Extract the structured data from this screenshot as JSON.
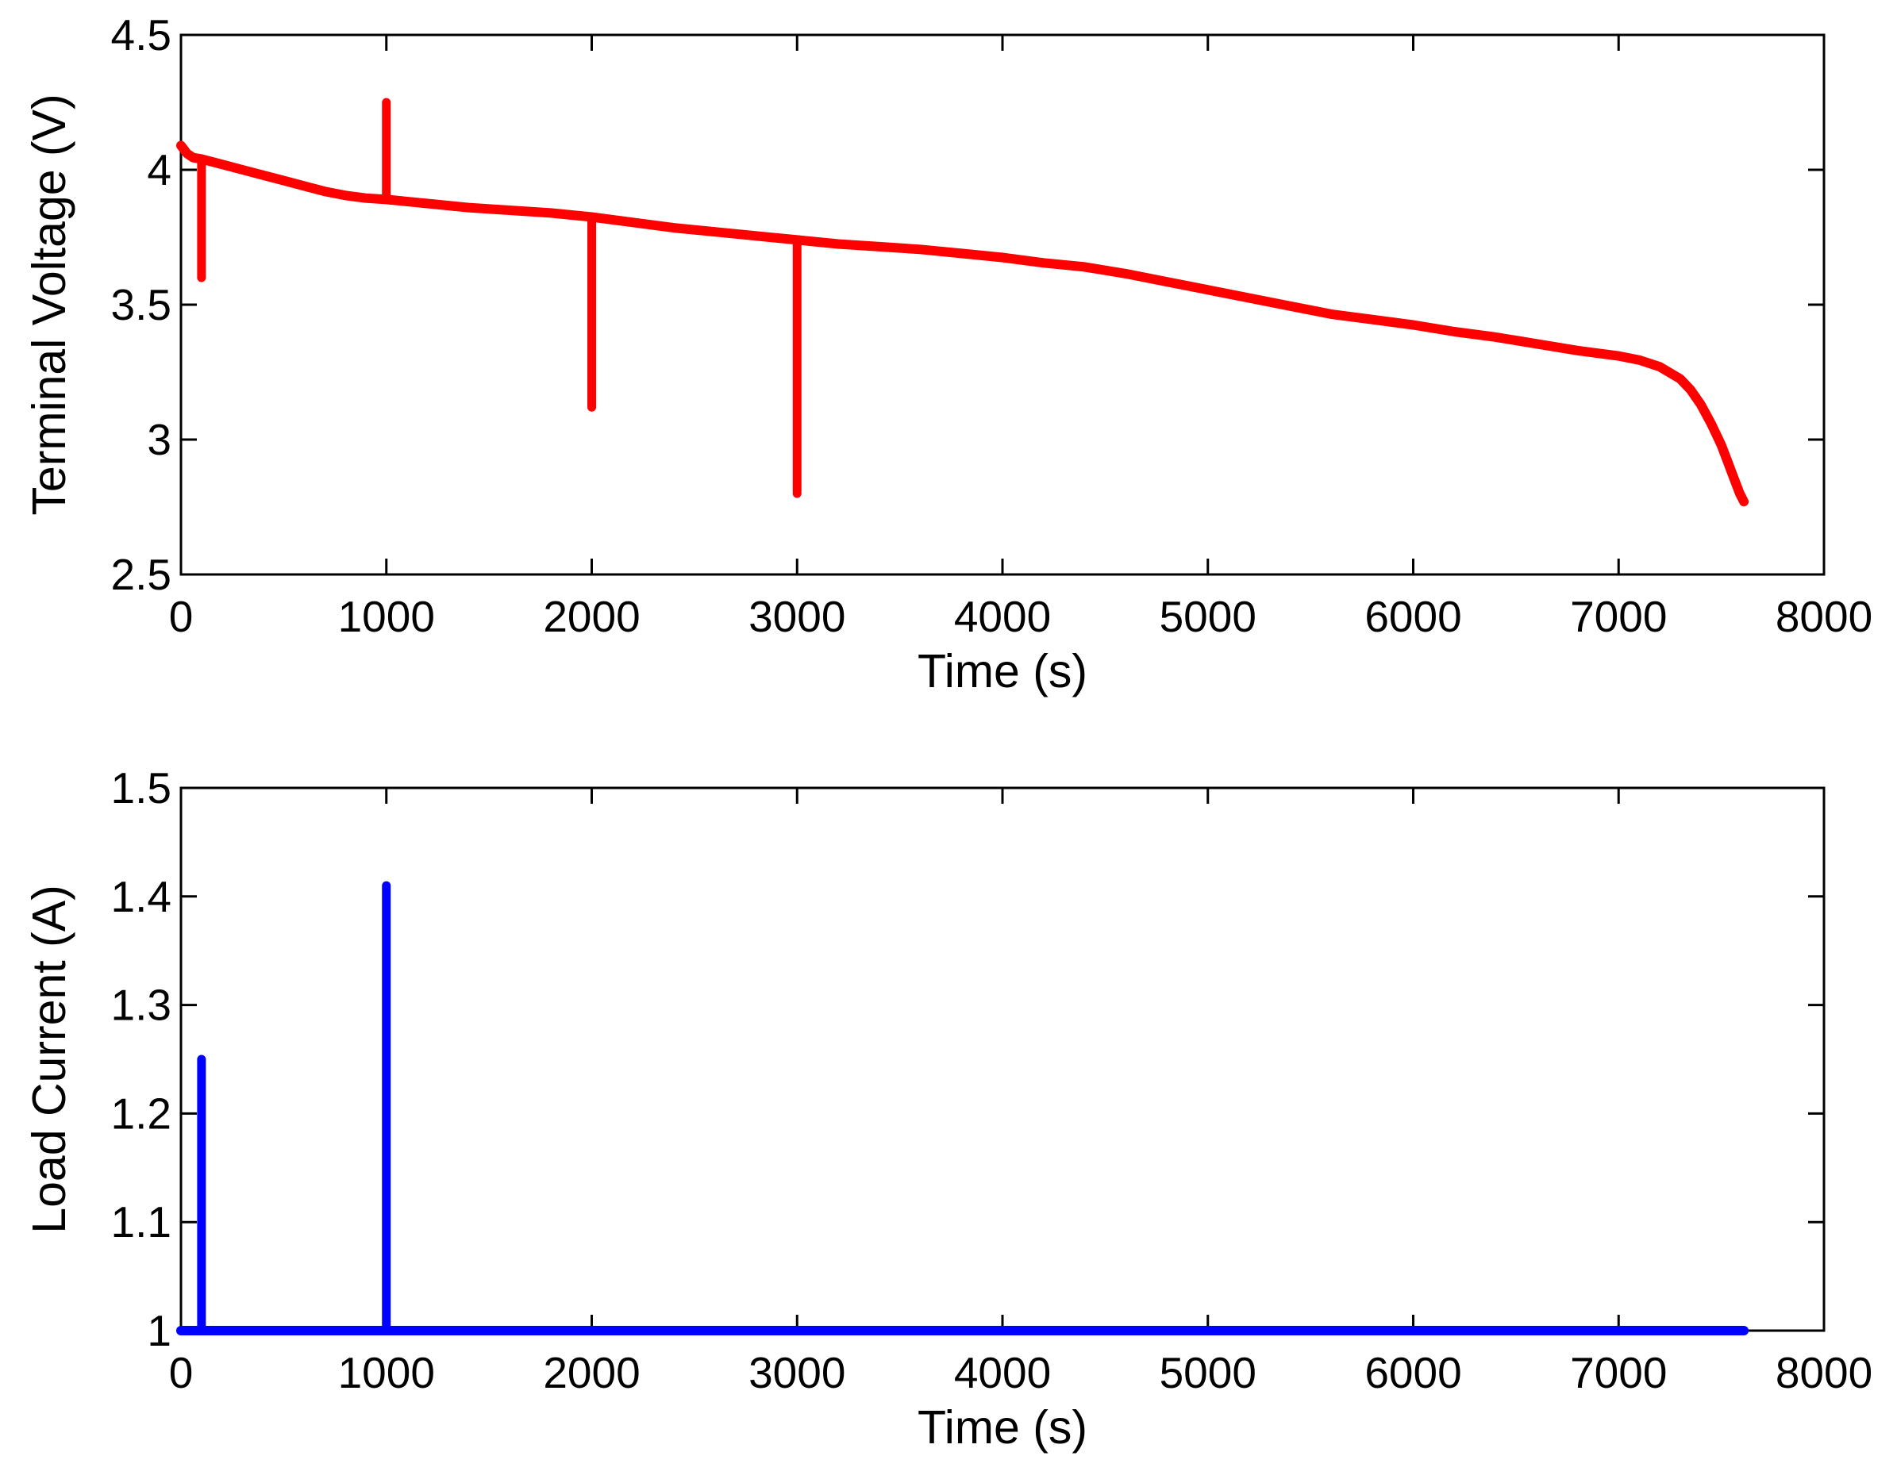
{
  "chart_data": [
    {
      "type": "line",
      "xlabel": "Time (s)",
      "ylabel": "Terminal Voltage (V)",
      "xlim": [
        0,
        8000
      ],
      "ylim": [
        2.5,
        4.5
      ],
      "xticks": [
        "0",
        "1000",
        "2000",
        "3000",
        "4000",
        "5000",
        "6000",
        "7000",
        "8000"
      ],
      "yticks": [
        "2.5",
        "3",
        "3.5",
        "4",
        "4.5"
      ],
      "grid": false,
      "legend": "none",
      "color": "#ff0000",
      "series": [
        {
          "x": [
            0,
            30,
            60,
            100,
            150,
            200,
            300,
            400,
            500,
            600,
            700,
            800,
            900,
            1000,
            1200,
            1400,
            1600,
            1800,
            2000,
            2200,
            2400,
            2600,
            2800,
            3000,
            3200,
            3400,
            3600,
            3800,
            4000,
            4200,
            4400,
            4600,
            4800,
            5000,
            5200,
            5400,
            5600,
            5800,
            6000,
            6200,
            6400,
            6600,
            6800,
            7000,
            7100,
            7200,
            7300,
            7350,
            7400,
            7450,
            7500,
            7530,
            7560,
            7590,
            7610
          ],
          "y": [
            4.09,
            4.06,
            4.045,
            4.04,
            4.03,
            4.02,
            4.0,
            3.98,
            3.96,
            3.94,
            3.92,
            3.905,
            3.895,
            3.89,
            3.875,
            3.86,
            3.85,
            3.84,
            3.825,
            3.805,
            3.785,
            3.77,
            3.755,
            3.74,
            3.725,
            3.715,
            3.705,
            3.69,
            3.675,
            3.655,
            3.64,
            3.615,
            3.585,
            3.555,
            3.525,
            3.495,
            3.465,
            3.445,
            3.425,
            3.4,
            3.38,
            3.355,
            3.33,
            3.31,
            3.295,
            3.27,
            3.225,
            3.185,
            3.13,
            3.06,
            2.98,
            2.92,
            2.86,
            2.8,
            2.77
          ]
        }
      ],
      "spikes": [
        {
          "x": 100,
          "from": 4.04,
          "to": 3.6
        },
        {
          "x": 1000,
          "from": 3.89,
          "to": 4.25
        },
        {
          "x": 2000,
          "from": 3.825,
          "to": 3.12
        },
        {
          "x": 3000,
          "from": 3.74,
          "to": 2.8
        }
      ]
    },
    {
      "type": "line",
      "xlabel": "Time (s)",
      "ylabel": "Load Current (A)",
      "xlim": [
        0,
        8000
      ],
      "ylim": [
        1,
        1.5
      ],
      "xticks": [
        "0",
        "1000",
        "2000",
        "3000",
        "4000",
        "5000",
        "6000",
        "7000",
        "8000"
      ],
      "yticks": [
        "1",
        "1.1",
        "1.2",
        "1.3",
        "1.4",
        "1.5"
      ],
      "grid": false,
      "legend": "none",
      "color": "#0000ff",
      "series": [
        {
          "x": [
            0,
            7610
          ],
          "y": [
            1,
            1
          ]
        }
      ],
      "spikes": [
        {
          "x": 100,
          "from": 1.0,
          "to": 1.25
        },
        {
          "x": 1000,
          "from": 1.0,
          "to": 1.41
        }
      ]
    }
  ]
}
